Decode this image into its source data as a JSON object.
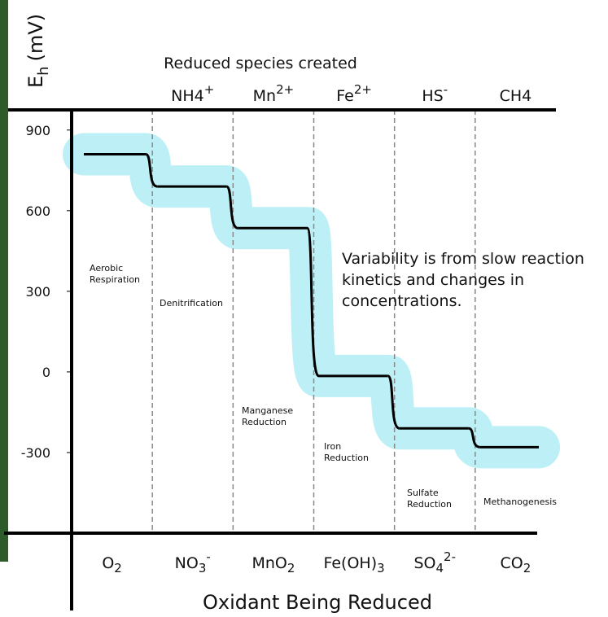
{
  "chart_data": {
    "type": "step",
    "y_label": {
      "main": "E",
      "sub": "h",
      "unit": "(mV)"
    },
    "top_label": "Reduced species created",
    "x_label": "Oxidant Being Reduced",
    "categories": [
      {
        "base": "O",
        "sub": "2"
      },
      {
        "base": "NO",
        "sub": "3",
        "sup": "-"
      },
      {
        "base": "MnO",
        "sub": "2"
      },
      {
        "base": "Fe(OH)",
        "sub": "3"
      },
      {
        "base": "SO",
        "sub": "4",
        "sup": "2-"
      },
      {
        "base": "CO",
        "sub": "2"
      }
    ],
    "reduced_species": [
      null,
      {
        "base": "NH4",
        "sup": "+"
      },
      {
        "base": "Mn",
        "sup": "2+"
      },
      {
        "base": "Fe",
        "sup": "2+"
      },
      {
        "base": "HS",
        "sup": "-"
      },
      {
        "base": "CH4"
      }
    ],
    "processes": [
      {
        "lines": [
          "Aerobic",
          "Respiration"
        ]
      },
      {
        "lines": [
          "Denitrification"
        ]
      },
      {
        "lines": [
          "Manganese",
          "Reduction"
        ]
      },
      {
        "lines": [
          "Iron",
          "Reduction"
        ]
      },
      {
        "lines": [
          "Sulfate",
          "Reduction"
        ]
      },
      {
        "lines": [
          "Methanogenesis"
        ]
      }
    ],
    "values": [
      810,
      690,
      535,
      -15,
      -210,
      -280
    ],
    "color": "#000000",
    "band_color": "#bdf0f6",
    "ylim": [
      -600,
      975
    ],
    "yticks": [
      900,
      600,
      300,
      0,
      -300
    ],
    "annotation": [
      "Variability is from slow reaction",
      "kinetics and changes in",
      "concentrations."
    ]
  }
}
